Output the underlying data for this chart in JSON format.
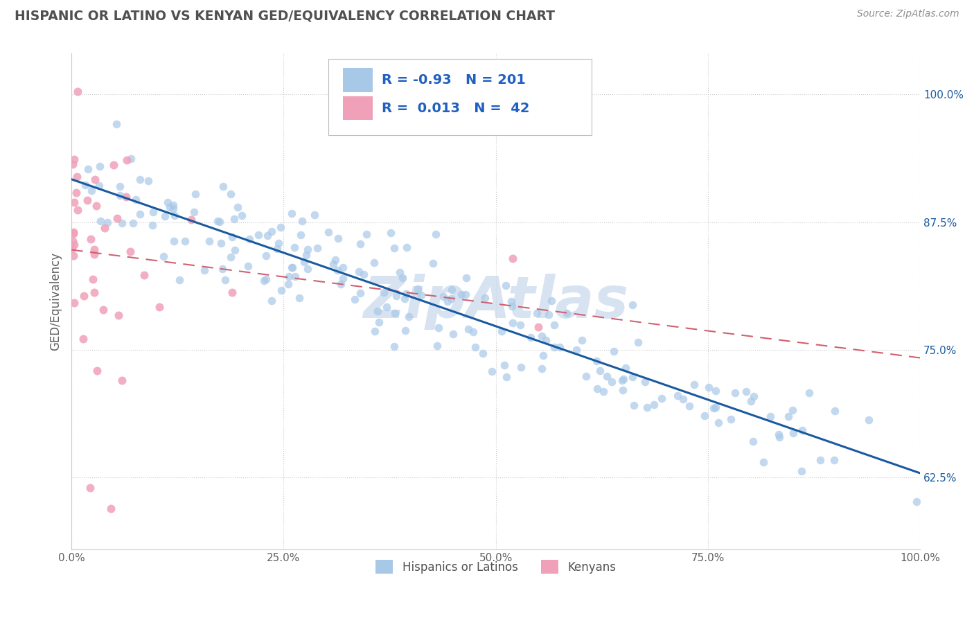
{
  "title": "HISPANIC OR LATINO VS KENYAN GED/EQUIVALENCY CORRELATION CHART",
  "source": "Source: ZipAtlas.com",
  "ylabel": "GED/Equivalency",
  "ytick_labels": [
    "62.5%",
    "75.0%",
    "87.5%",
    "100.0%"
  ],
  "ytick_values": [
    0.625,
    0.75,
    0.875,
    1.0
  ],
  "xtick_values": [
    0.0,
    0.25,
    0.5,
    0.75,
    1.0
  ],
  "xtick_labels": [
    "0.0%",
    "25.0%",
    "50.0%",
    "75.0%",
    "100.0%"
  ],
  "xlim": [
    0.0,
    1.0
  ],
  "ylim": [
    0.555,
    1.04
  ],
  "blue_R": -0.93,
  "blue_N": 201,
  "pink_R": 0.013,
  "pink_N": 42,
  "blue_color": "#A8C8E8",
  "pink_color": "#F0A0B8",
  "blue_line_color": "#1A5AA0",
  "pink_line_color": "#D06070",
  "watermark_color": "#C8D8EC",
  "bg_color": "#FFFFFF",
  "grid_color": "#CCCCCC",
  "legend_label_blue": "Hispanics or Latinos",
  "legend_label_pink": "Kenyans",
  "title_color": "#505050",
  "source_color": "#909090",
  "legend_R_color": "#2060C0",
  "legend_N_color": "#2060C0"
}
